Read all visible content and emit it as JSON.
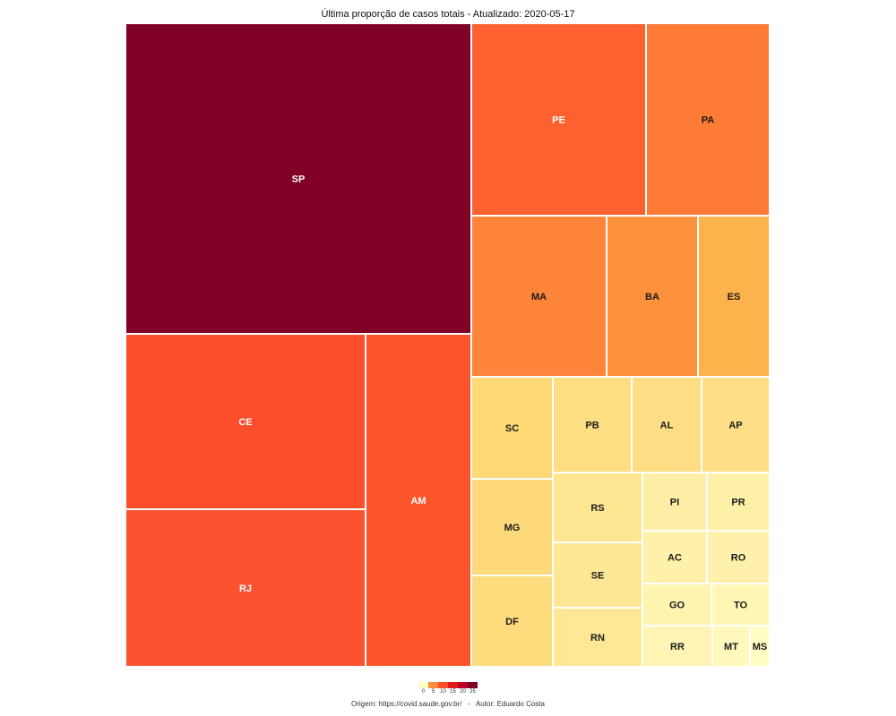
{
  "chart_data": {
    "type": "treemap",
    "title": "Última proporção de casos totais - Atualizado: 2020-05-17",
    "items": [
      {
        "label": "SP",
        "value": 25,
        "color": "#800026"
      },
      {
        "label": "CE",
        "value": 9.8,
        "color": "#fc4e2a"
      },
      {
        "label": "RJ",
        "value": 9.2,
        "color": "#fd5230"
      },
      {
        "label": "AM",
        "value": 8.1,
        "color": "#fd552b"
      },
      {
        "label": "PE",
        "value": 7.6,
        "color": "#fd6130"
      },
      {
        "label": "PA",
        "value": 5.4,
        "color": "#fd7b35"
      },
      {
        "label": "MA",
        "value": 4.9,
        "color": "#fd8438"
      },
      {
        "label": "BA",
        "value": 3.4,
        "color": "#fd913c"
      },
      {
        "label": "ES",
        "value": 2.6,
        "color": "#feb24c"
      },
      {
        "label": "SC",
        "value": 1.9,
        "color": "#fed976"
      },
      {
        "label": "PB",
        "value": 1.7,
        "color": "#fede82"
      },
      {
        "label": "AL",
        "value": 1.5,
        "color": "#fede84"
      },
      {
        "label": "AP",
        "value": 1.4,
        "color": "#fede86"
      },
      {
        "label": "MG",
        "value": 1.6,
        "color": "#fed97a"
      },
      {
        "label": "DF",
        "value": 1.6,
        "color": "#fedc7e"
      },
      {
        "label": "RS",
        "value": 1.1,
        "color": "#fee693"
      },
      {
        "label": "SE",
        "value": 1.0,
        "color": "#fee794"
      },
      {
        "label": "RN",
        "value": 1.0,
        "color": "#fee895"
      },
      {
        "label": "PI",
        "value": 0.7,
        "color": "#ffefa6"
      },
      {
        "label": "PR",
        "value": 0.7,
        "color": "#fff0a8"
      },
      {
        "label": "AC",
        "value": 0.6,
        "color": "#fff1aa"
      },
      {
        "label": "RO",
        "value": 0.6,
        "color": "#fff1ab"
      },
      {
        "label": "GO",
        "value": 0.5,
        "color": "#fff3b0"
      },
      {
        "label": "TO",
        "value": 0.45,
        "color": "#fff5b4"
      },
      {
        "label": "RR",
        "value": 0.5,
        "color": "#fff4b3"
      },
      {
        "label": "MT",
        "value": 0.3,
        "color": "#fff8bd"
      },
      {
        "label": "MS",
        "value": 0.15,
        "color": "#ffffc5"
      }
    ],
    "legend": {
      "labels": [
        "0",
        "5",
        "10",
        "15",
        "20",
        "25"
      ],
      "colors": [
        "#ffffcc",
        "#fd8d3c",
        "#fc4e2a",
        "#e31a1c",
        "#bd0026",
        "#800026"
      ],
      "placement": "bottom"
    }
  },
  "caption": {
    "source": "Origem: https://covid.saude.gov.br/",
    "separator": "-",
    "author": "Autor: Eduardo Costa"
  }
}
